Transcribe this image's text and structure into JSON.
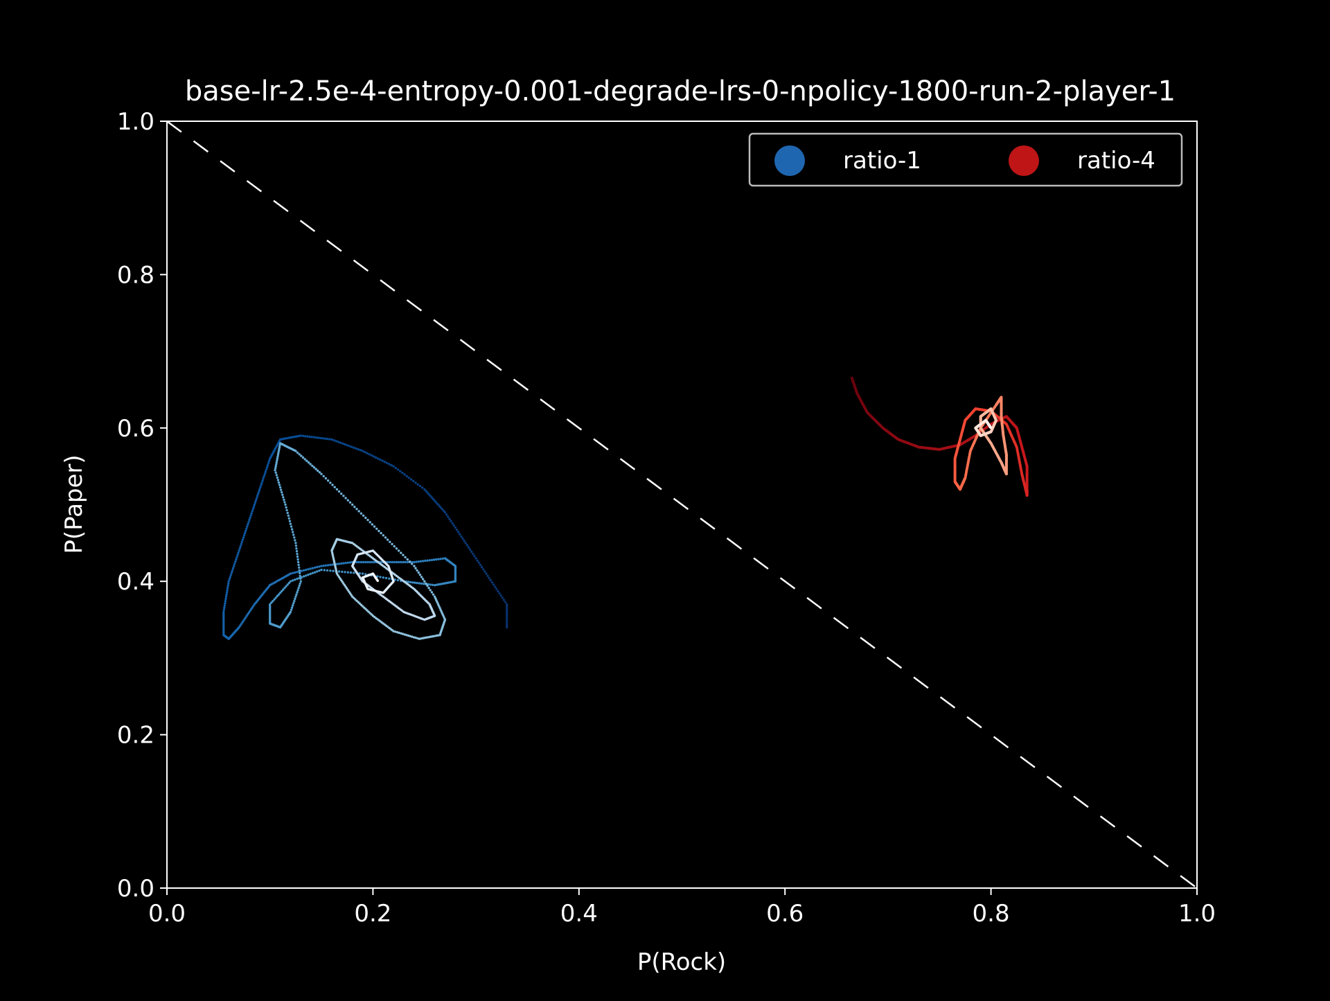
{
  "chart_data": {
    "type": "scatter",
    "title": "base-lr-2.5e-4-entropy-0.001-degrade-lrs-0-npolicy-1800-run-2-player-1",
    "xlabel": "P(Rock)",
    "ylabel": "P(Paper)",
    "xlim": [
      0.0,
      1.0
    ],
    "ylim": [
      0.0,
      1.0
    ],
    "xticks": [
      "0.0",
      "0.2",
      "0.4",
      "0.6",
      "0.8",
      "1.0"
    ],
    "yticks": [
      "0.0",
      "0.2",
      "0.4",
      "0.6",
      "0.8",
      "1.0"
    ],
    "grid": false,
    "legend_position": "top-right",
    "reference_line": {
      "x": [
        0.0,
        1.0
      ],
      "y": [
        1.0,
        0.0
      ],
      "style": "dashed",
      "color": "#ffffff"
    },
    "series": [
      {
        "name": "ratio-1",
        "legend_color": "#1f66b0",
        "colormap": [
          "#08306b",
          "#08519c",
          "#2171b5",
          "#4292c6",
          "#6baed6",
          "#9ecae1",
          "#c6dbef",
          "#f7fbff"
        ],
        "points": [
          [
            0.33,
            0.34
          ],
          [
            0.33,
            0.37
          ],
          [
            0.31,
            0.41
          ],
          [
            0.29,
            0.45
          ],
          [
            0.27,
            0.49
          ],
          [
            0.25,
            0.52
          ],
          [
            0.22,
            0.55
          ],
          [
            0.19,
            0.57
          ],
          [
            0.16,
            0.585
          ],
          [
            0.13,
            0.59
          ],
          [
            0.11,
            0.585
          ],
          [
            0.1,
            0.56
          ],
          [
            0.09,
            0.52
          ],
          [
            0.08,
            0.48
          ],
          [
            0.07,
            0.44
          ],
          [
            0.06,
            0.4
          ],
          [
            0.055,
            0.36
          ],
          [
            0.055,
            0.33
          ],
          [
            0.06,
            0.325
          ],
          [
            0.07,
            0.34
          ],
          [
            0.085,
            0.37
          ],
          [
            0.1,
            0.395
          ],
          [
            0.12,
            0.41
          ],
          [
            0.15,
            0.42
          ],
          [
            0.18,
            0.425
          ],
          [
            0.21,
            0.425
          ],
          [
            0.24,
            0.425
          ],
          [
            0.27,
            0.43
          ],
          [
            0.28,
            0.42
          ],
          [
            0.28,
            0.4
          ],
          [
            0.26,
            0.395
          ],
          [
            0.23,
            0.4
          ],
          [
            0.19,
            0.41
          ],
          [
            0.15,
            0.415
          ],
          [
            0.12,
            0.4
          ],
          [
            0.1,
            0.37
          ],
          [
            0.1,
            0.345
          ],
          [
            0.11,
            0.34
          ],
          [
            0.12,
            0.36
          ],
          [
            0.13,
            0.4
          ],
          [
            0.125,
            0.45
          ],
          [
            0.115,
            0.5
          ],
          [
            0.105,
            0.545
          ],
          [
            0.11,
            0.58
          ],
          [
            0.125,
            0.57
          ],
          [
            0.15,
            0.54
          ],
          [
            0.18,
            0.5
          ],
          [
            0.21,
            0.46
          ],
          [
            0.24,
            0.42
          ],
          [
            0.26,
            0.38
          ],
          [
            0.27,
            0.35
          ],
          [
            0.265,
            0.33
          ],
          [
            0.245,
            0.325
          ],
          [
            0.22,
            0.335
          ],
          [
            0.2,
            0.355
          ],
          [
            0.18,
            0.38
          ],
          [
            0.165,
            0.41
          ],
          [
            0.16,
            0.44
          ],
          [
            0.165,
            0.455
          ],
          [
            0.18,
            0.45
          ],
          [
            0.2,
            0.43
          ],
          [
            0.22,
            0.41
          ],
          [
            0.24,
            0.39
          ],
          [
            0.255,
            0.37
          ],
          [
            0.26,
            0.355
          ],
          [
            0.25,
            0.35
          ],
          [
            0.23,
            0.36
          ],
          [
            0.21,
            0.38
          ],
          [
            0.19,
            0.4
          ],
          [
            0.18,
            0.42
          ],
          [
            0.185,
            0.435
          ],
          [
            0.2,
            0.44
          ],
          [
            0.215,
            0.42
          ],
          [
            0.22,
            0.4
          ],
          [
            0.21,
            0.385
          ],
          [
            0.195,
            0.39
          ],
          [
            0.19,
            0.405
          ],
          [
            0.2,
            0.41
          ],
          [
            0.205,
            0.4
          ]
        ]
      },
      {
        "name": "ratio-4",
        "legend_color": "#bf1516",
        "colormap": [
          "#67000d",
          "#a50f15",
          "#cb181d",
          "#ef3b2c",
          "#fb6a4a",
          "#fc9272",
          "#fcbba1",
          "#fff5f0"
        ],
        "points": [
          [
            0.665,
            0.665
          ],
          [
            0.67,
            0.645
          ],
          [
            0.68,
            0.62
          ],
          [
            0.695,
            0.6
          ],
          [
            0.71,
            0.585
          ],
          [
            0.73,
            0.575
          ],
          [
            0.75,
            0.572
          ],
          [
            0.77,
            0.578
          ],
          [
            0.785,
            0.59
          ],
          [
            0.8,
            0.605
          ],
          [
            0.815,
            0.615
          ],
          [
            0.825,
            0.6
          ],
          [
            0.83,
            0.575
          ],
          [
            0.835,
            0.55
          ],
          [
            0.835,
            0.52
          ],
          [
            0.835,
            0.512
          ],
          [
            0.83,
            0.54
          ],
          [
            0.825,
            0.575
          ],
          [
            0.815,
            0.605
          ],
          [
            0.8,
            0.622
          ],
          [
            0.785,
            0.625
          ],
          [
            0.775,
            0.61
          ],
          [
            0.77,
            0.585
          ],
          [
            0.765,
            0.56
          ],
          [
            0.765,
            0.53
          ],
          [
            0.77,
            0.52
          ],
          [
            0.775,
            0.535
          ],
          [
            0.78,
            0.57
          ],
          [
            0.79,
            0.6
          ],
          [
            0.805,
            0.63
          ],
          [
            0.81,
            0.64
          ],
          [
            0.81,
            0.615
          ],
          [
            0.812,
            0.59
          ],
          [
            0.815,
            0.565
          ],
          [
            0.815,
            0.54
          ],
          [
            0.81,
            0.555
          ],
          [
            0.8,
            0.58
          ],
          [
            0.79,
            0.6
          ],
          [
            0.79,
            0.615
          ],
          [
            0.8,
            0.625
          ],
          [
            0.805,
            0.61
          ],
          [
            0.8,
            0.595
          ],
          [
            0.79,
            0.59
          ],
          [
            0.785,
            0.6
          ],
          [
            0.795,
            0.61
          ],
          [
            0.8,
            0.6
          ]
        ]
      }
    ]
  }
}
